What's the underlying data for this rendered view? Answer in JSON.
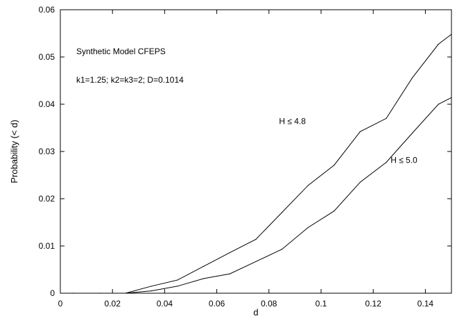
{
  "chart_data": {
    "type": "line",
    "title": "",
    "xlabel": "d",
    "ylabel": "Probability (< d)",
    "xlim": [
      0,
      0.15
    ],
    "ylim": [
      0,
      0.06
    ],
    "x_ticks": [
      0,
      0.02,
      0.04,
      0.06,
      0.08,
      0.1,
      0.12,
      0.14
    ],
    "x_tick_labels": [
      "0",
      "0.02",
      "0.04",
      "0.06",
      "0.08",
      "0.1",
      "0.12",
      "0.14"
    ],
    "y_ticks": [
      0,
      0.01,
      0.02,
      0.03,
      0.04,
      0.05,
      0.06
    ],
    "y_tick_labels": [
      "0",
      "0.01",
      "0.02",
      "0.03",
      "0.04",
      "0.05",
      "0.06"
    ],
    "grid": false,
    "annotations": [
      "Synthetic Model CFEPS",
      "k1=1.25; k2=k3=2; D=0.1014"
    ],
    "series": [
      {
        "name": "H ≤ 4.8",
        "x": [
          0.005,
          0.015,
          0.025,
          0.035,
          0.045,
          0.055,
          0.065,
          0.075,
          0.085,
          0.095,
          0.105,
          0.115,
          0.125,
          0.135,
          0.145,
          0.15
        ],
        "y": [
          0,
          0,
          0,
          0.0015,
          0.0028,
          0.0057,
          0.0086,
          0.0114,
          0.0171,
          0.0228,
          0.0271,
          0.0342,
          0.037,
          0.0456,
          0.0527,
          0.0548
        ],
        "label_at": [
          0.089,
          0.0358
        ]
      },
      {
        "name": "H ≤ 5.0",
        "x": [
          0.005,
          0.015,
          0.025,
          0.035,
          0.045,
          0.055,
          0.065,
          0.075,
          0.085,
          0.095,
          0.105,
          0.115,
          0.125,
          0.135,
          0.145,
          0.15
        ],
        "y": [
          0,
          0,
          0,
          0.0005,
          0.0015,
          0.0031,
          0.0041,
          0.0067,
          0.0093,
          0.0139,
          0.0174,
          0.0235,
          0.0277,
          0.0339,
          0.04,
          0.0414
        ],
        "label_at": [
          0.1318,
          0.0276
        ]
      }
    ]
  }
}
